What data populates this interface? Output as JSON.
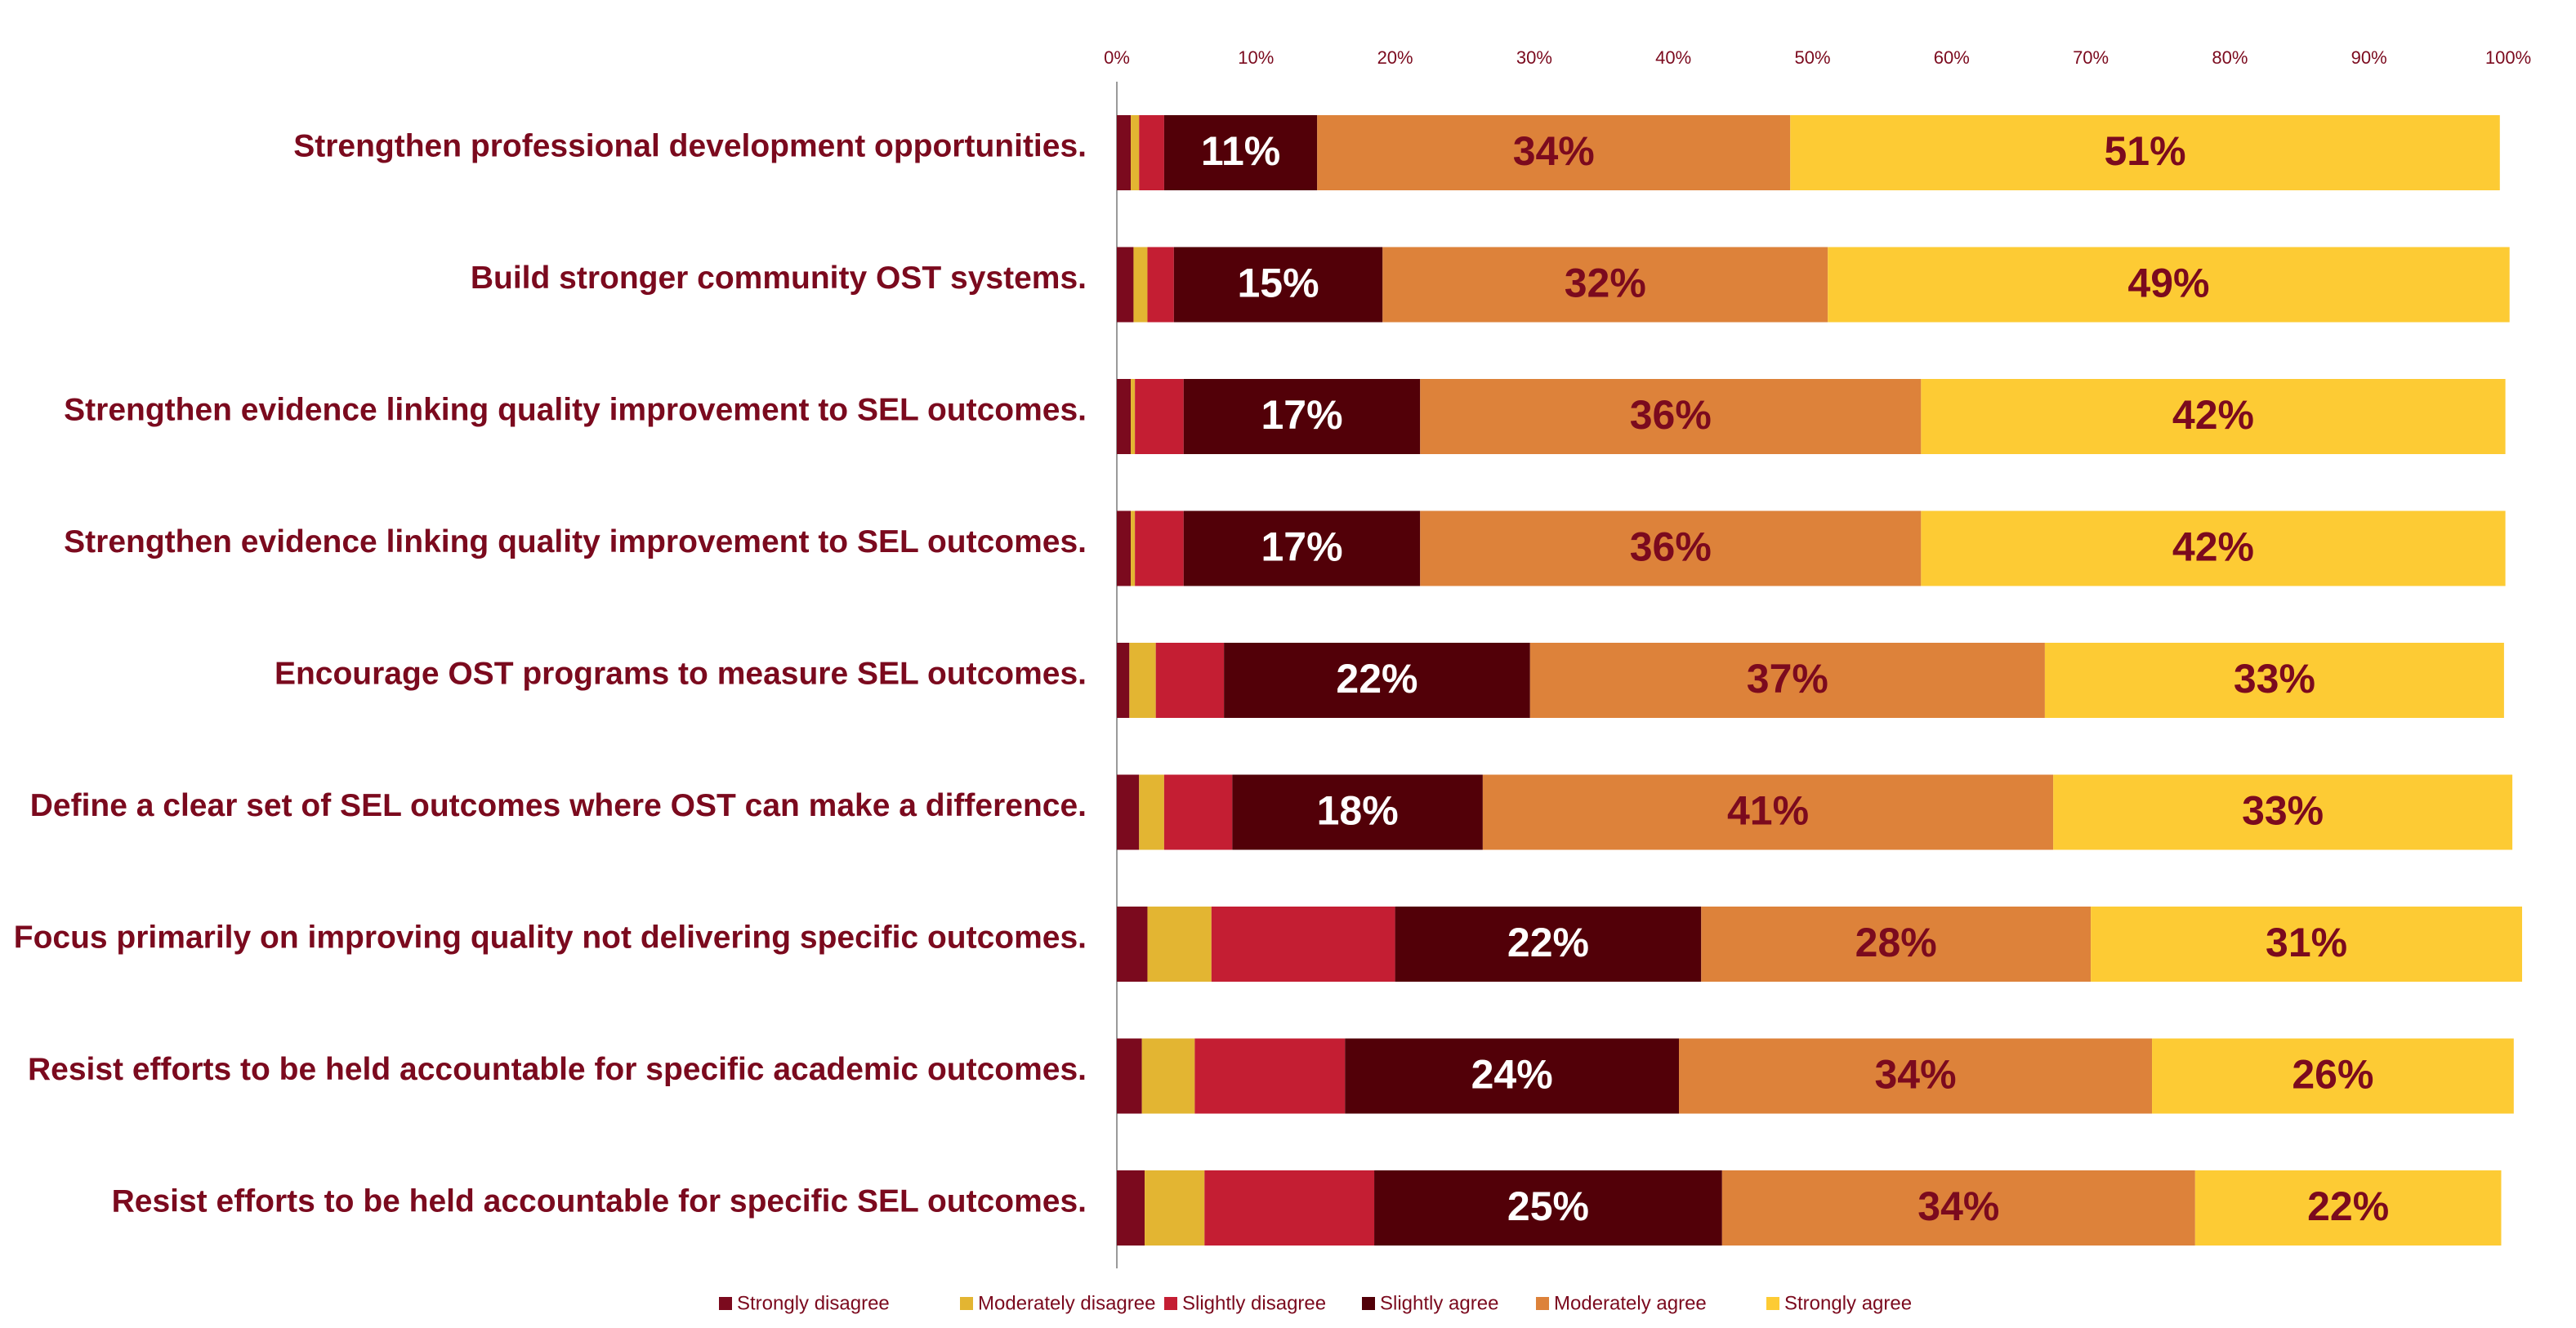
{
  "chart_data": {
    "type": "bar",
    "orientation": "horizontal",
    "stacked": true,
    "percent_scale": true,
    "xlim": [
      0,
      100
    ],
    "x_ticks": [
      "0%",
      "10%",
      "20%",
      "30%",
      "40%",
      "50%",
      "60%",
      "70%",
      "80%",
      "90%",
      "100%"
    ],
    "x_axis_position": "top",
    "grid": false,
    "legend_position": "bottom",
    "categories": [
      "Strengthen professional development opportunities.",
      "Build stronger community OST systems.",
      "Strengthen evidence linking quality improvement to SEL outcomes.",
      "Strengthen evidence linking quality improvement to SEL outcomes.",
      "Encourage OST programs to measure SEL outcomes.",
      "Define a clear set of SEL outcomes where OST can make a difference.",
      "Focus primarily on improving quality not delivering specific outcomes.",
      "Resist efforts to be held accountable for specific academic outcomes.",
      "Resist efforts to be held accountable for specific SEL outcomes."
    ],
    "series": [
      {
        "name": "Strongly disagree",
        "color": "#7b0a1e",
        "values": [
          1.0,
          1.2,
          1.0,
          1.0,
          0.9,
          1.6,
          2.2,
          1.8,
          2.0
        ]
      },
      {
        "name": "Moderately disagree",
        "color": "#e3b532",
        "values": [
          0.6,
          1.0,
          0.3,
          0.3,
          1.9,
          1.8,
          4.6,
          3.8,
          4.3
        ]
      },
      {
        "name": "Slightly disagree",
        "color": "#c41e33",
        "values": [
          1.8,
          1.9,
          3.5,
          3.5,
          4.9,
          4.9,
          13.2,
          10.8,
          12.2
        ]
      },
      {
        "name": "Slightly agree",
        "color": "#520008",
        "values": [
          11,
          15,
          17,
          17,
          22,
          18,
          22,
          24,
          25
        ]
      },
      {
        "name": "Moderately agree",
        "color": "#dd823a",
        "values": [
          34,
          32,
          36,
          36,
          37,
          41,
          28,
          34,
          34
        ]
      },
      {
        "name": "Strongly agree",
        "color": "#fdcb34",
        "values": [
          51,
          49,
          42,
          42,
          33,
          33,
          31,
          26,
          22
        ]
      }
    ],
    "data_labels": [
      [
        "11%",
        "34%",
        "51%"
      ],
      [
        "15%",
        "32%",
        "49%"
      ],
      [
        "17%",
        "36%",
        "42%"
      ],
      [
        "17%",
        "36%",
        "42%"
      ],
      [
        "22%",
        "37%",
        "33%"
      ],
      [
        "18%",
        "41%",
        "33%"
      ],
      [
        "22%",
        "28%",
        "31%"
      ],
      [
        "24%",
        "34%",
        "26%"
      ],
      [
        "25%",
        "34%",
        "22%"
      ]
    ],
    "labeled_series": [
      3,
      4,
      5
    ],
    "label_colors": [
      "#ffffff",
      "#7b0a1e",
      "#7b0a1e"
    ],
    "category_label_color": "#7b0a1e",
    "tick_label_color": "#7b0a1e",
    "title": "",
    "xlabel": "",
    "ylabel": ""
  }
}
